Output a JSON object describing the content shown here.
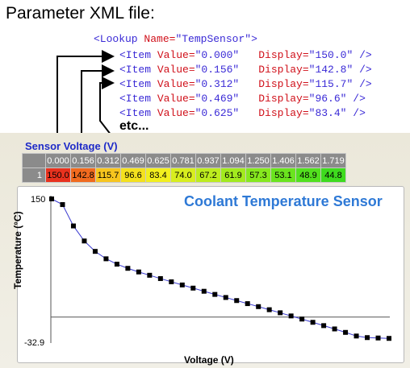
{
  "heading": "Parameter XML file:",
  "xml": {
    "lookup_open": "<Lookup ",
    "lookup_attr": "Name=",
    "lookup_value": "\"TempSensor\"",
    "lookup_close": ">",
    "items": [
      {
        "value": "\"0.000\"",
        "display": "\"150.0\""
      },
      {
        "value": "\"0.156\"",
        "display": "\"142.8\""
      },
      {
        "value": "\"0.312\"",
        "display": "\"115.7\""
      },
      {
        "value": "\"0.469\"",
        "display": "\"96.6\""
      },
      {
        "value": "\"0.625\"",
        "display": "\"83.4\""
      }
    ],
    "item_open": "<Item ",
    "value_attr": "Value=",
    "display_attr": "Display=",
    "item_close": " />",
    "etc": "etc..."
  },
  "sensor_label": "Sensor Voltage (V)",
  "table": {
    "headers": [
      "0.000",
      "0.156",
      "0.312",
      "0.469",
      "0.625",
      "0.781",
      "0.937",
      "1.094",
      "1.250",
      "1.406",
      "1.562",
      "1.719"
    ],
    "row_label": "1",
    "values": [
      "150.0",
      "142.8",
      "115.7",
      "96.6",
      "83.4",
      "74.0",
      "67.2",
      "61.9",
      "57.3",
      "53.1",
      "48.9",
      "44.8"
    ],
    "colors": [
      "#e8321e",
      "#f06a1e",
      "#f7c51e",
      "#f4e11e",
      "#f2ef1e",
      "#d8ee1e",
      "#bdec1e",
      "#a2ea1e",
      "#86e81e",
      "#6ae41e",
      "#52e01e",
      "#3edb1e"
    ]
  },
  "chart": {
    "title": "Coolant Temperature Sensor",
    "ylabel": "Temperature (°C)",
    "xlabel": "Voltage  (V)",
    "ymax_label": "150",
    "ymin_label": "-32.9"
  },
  "chart_data": {
    "type": "line",
    "title": "Coolant Temperature Sensor",
    "xlabel": "Voltage  (V)",
    "ylabel": "Temperature (°C)",
    "ylim": [
      -32.9,
      150
    ],
    "series": [
      {
        "values": [
          150.0,
          142.8,
          115.7,
          96.6,
          83.4,
          74.0,
          67.2,
          61.9,
          57.3,
          53.1,
          48.9,
          44.8,
          40.8,
          36.8,
          32.8,
          28.8,
          24.9,
          21.0,
          17.1,
          13.3,
          9.4,
          5.5,
          1.5,
          -2.5,
          -6.6,
          -10.8,
          -15.0,
          -19.4,
          -24.0,
          -26.0,
          -26.5,
          -27.0
        ]
      }
    ],
    "color": "#3a3ad0",
    "marker_color": "#000000"
  }
}
